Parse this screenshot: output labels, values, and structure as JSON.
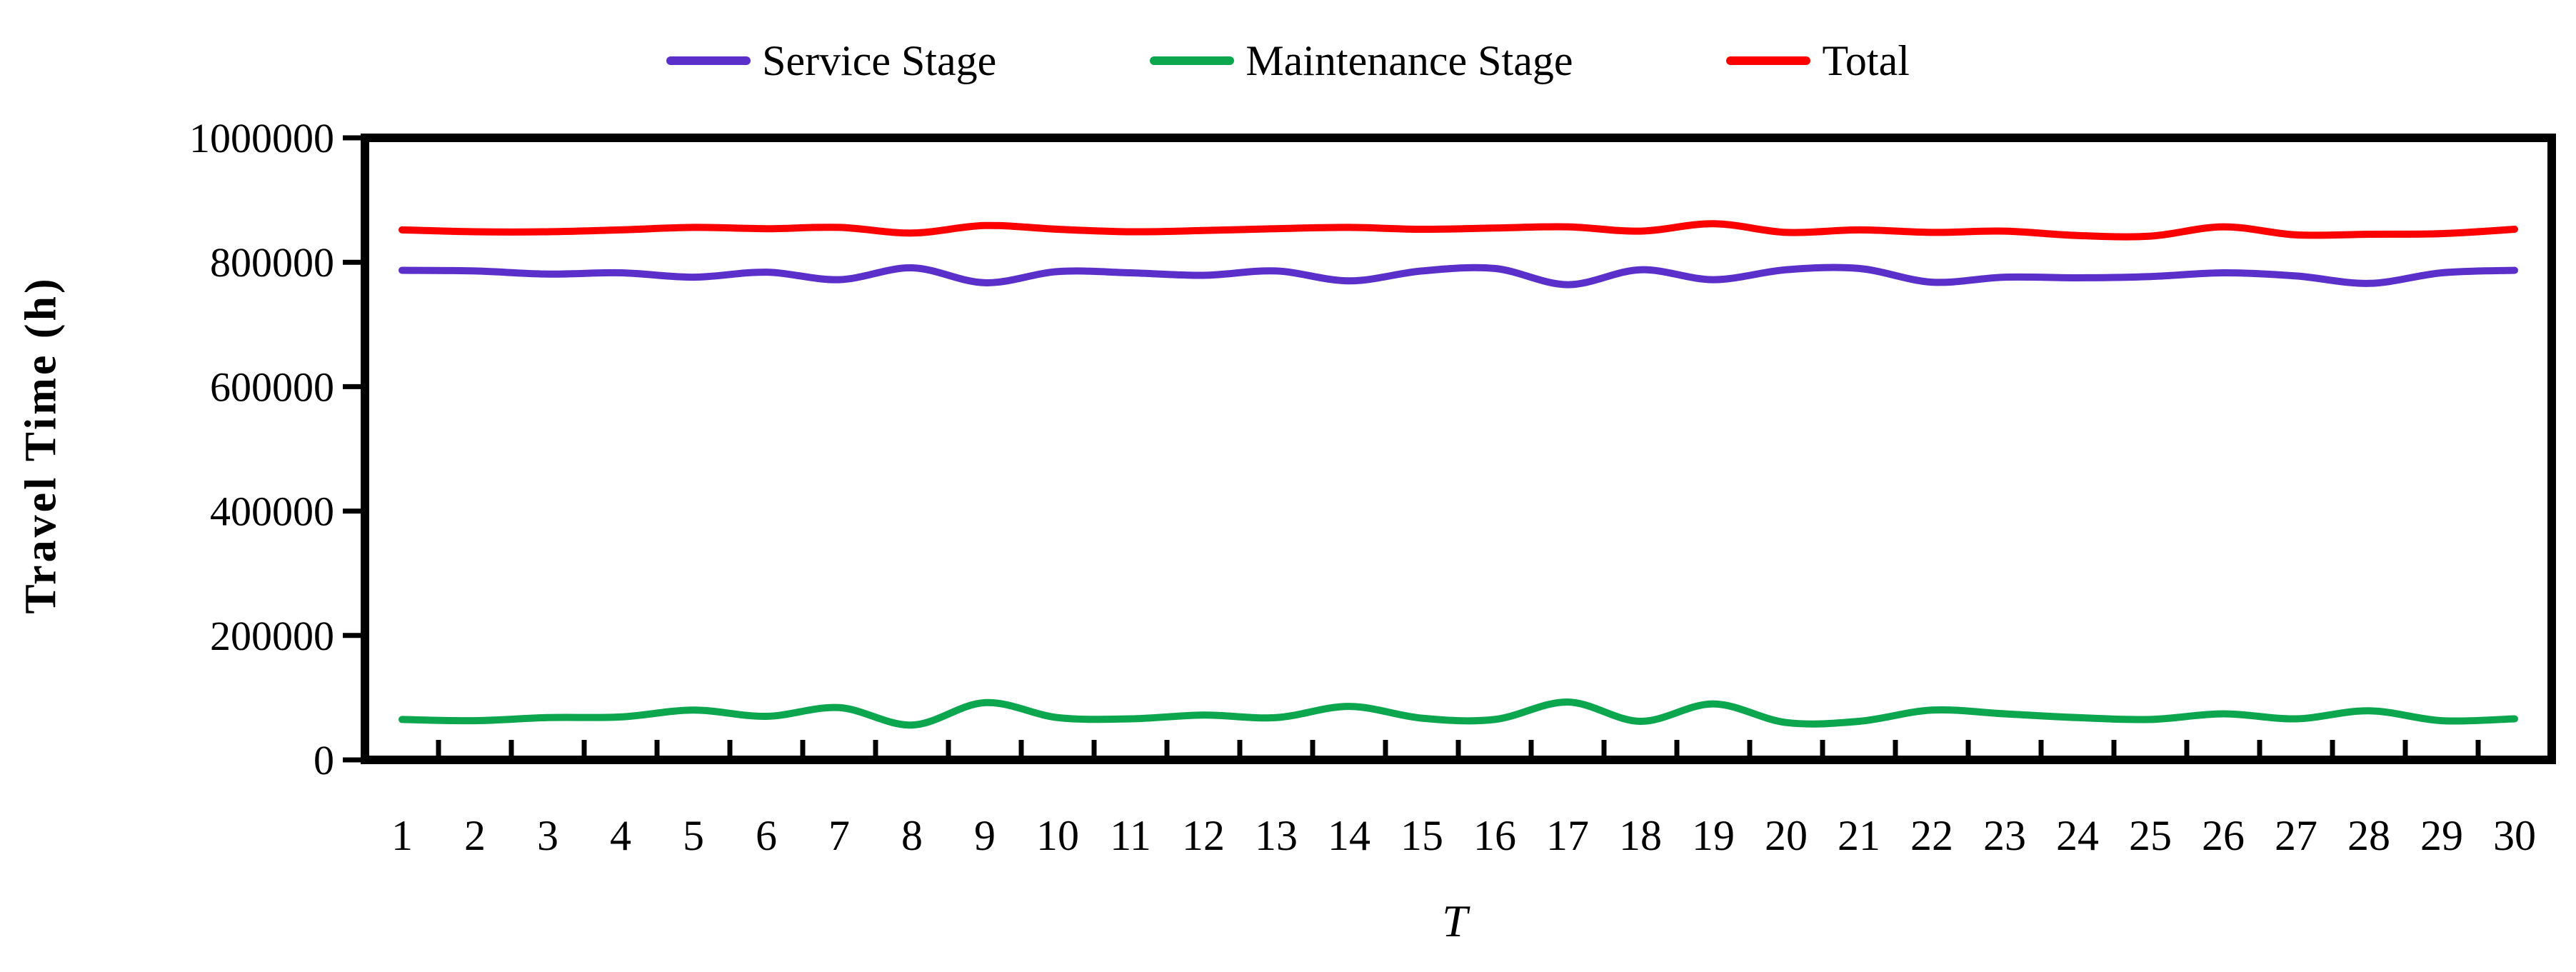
{
  "legend": {
    "items": [
      {
        "label": "Service Stage"
      },
      {
        "label": "Maintenance Stage"
      },
      {
        "label": "Total"
      }
    ]
  },
  "axes": {
    "y_title": "Travel Time (h)",
    "x_title": "T"
  },
  "colors": {
    "service": "#5B2FC9",
    "maintenance": "#0CA64E",
    "total": "#FC0000",
    "axis": "#000000"
  },
  "chart_data": {
    "type": "line",
    "title": "",
    "xlabel": "T",
    "ylabel": "Travel Time (h)",
    "categories": [
      1,
      2,
      3,
      4,
      5,
      6,
      7,
      8,
      9,
      10,
      11,
      12,
      13,
      14,
      15,
      16,
      17,
      18,
      19,
      20,
      21,
      22,
      23,
      24,
      25,
      26,
      27,
      28,
      29,
      30
    ],
    "y_ticks": [
      0,
      200000,
      400000,
      600000,
      800000,
      1000000
    ],
    "ylim": [
      0,
      1000000
    ],
    "grid": false,
    "legend_position": "top",
    "line_style": "smooth",
    "series": [
      {
        "name": "Service Stage",
        "color": "#5B2FC9",
        "values": [
          787000,
          786000,
          781000,
          783000,
          776000,
          784000,
          772000,
          791000,
          767000,
          785000,
          783000,
          779000,
          786000,
          770000,
          786000,
          790000,
          764000,
          788000,
          772000,
          788000,
          790000,
          768000,
          776000,
          775000,
          777000,
          783000,
          778000,
          766000,
          783000,
          787000
        ]
      },
      {
        "name": "Maintenance Stage",
        "color": "#0CA64E",
        "values": [
          65000,
          63000,
          68000,
          69000,
          80000,
          70000,
          84000,
          56000,
          92000,
          68000,
          66000,
          72000,
          68000,
          86000,
          67000,
          65000,
          93000,
          62000,
          90000,
          60000,
          62000,
          80000,
          74000,
          68000,
          65000,
          74000,
          66000,
          79000,
          63000,
          66000
        ]
      },
      {
        "name": "Total",
        "color": "#FC0000",
        "values": [
          852000,
          849000,
          849000,
          852000,
          856000,
          854000,
          856000,
          847000,
          859000,
          853000,
          849000,
          851000,
          854000,
          856000,
          853000,
          855000,
          857000,
          850000,
          862000,
          848000,
          852000,
          848000,
          850000,
          843000,
          842000,
          857000,
          844000,
          845000,
          846000,
          853000
        ]
      }
    ]
  }
}
